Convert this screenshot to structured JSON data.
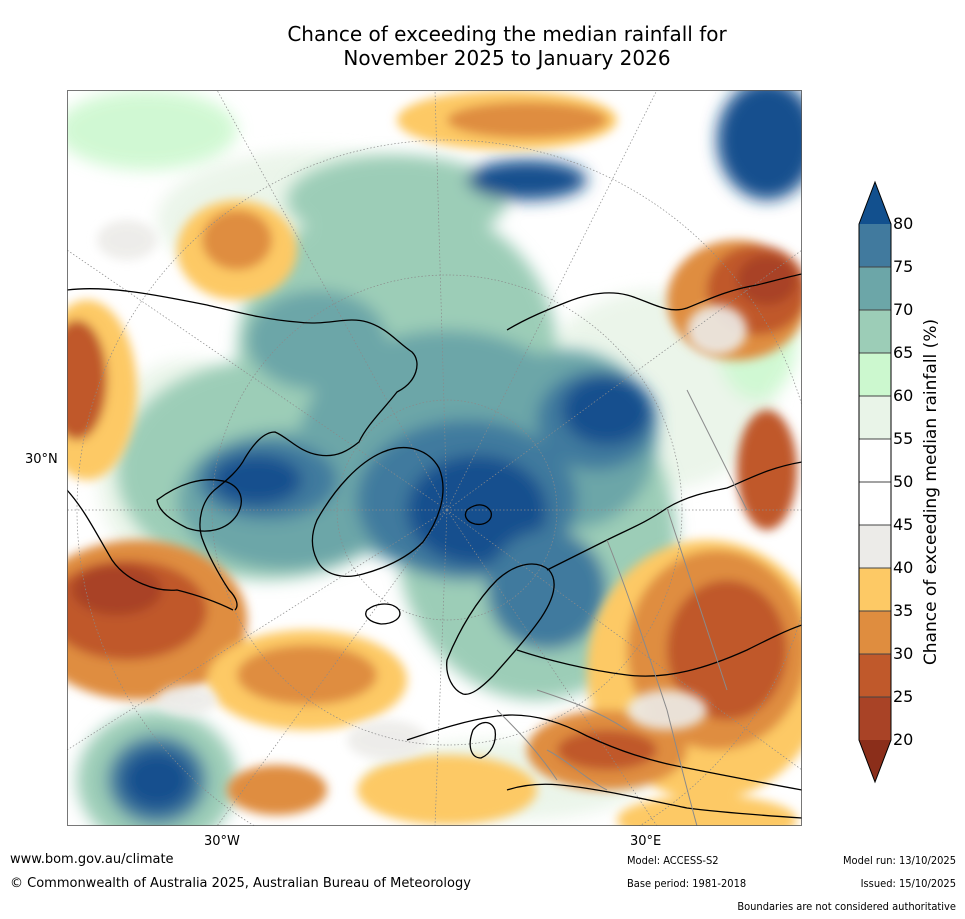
{
  "title": {
    "line1": "Chance of exceeding the median rainfall for",
    "line2": "November 2025 to January 2026"
  },
  "axes": {
    "left_label": "30°N",
    "bottom_labels": [
      "30°W",
      "30°E"
    ]
  },
  "colorbar": {
    "title": "Chance of exceeding median rainfall (%)",
    "ticks": [
      "80",
      "75",
      "70",
      "65",
      "60",
      "55",
      "50",
      "45",
      "40",
      "35",
      "30",
      "25",
      "20"
    ],
    "bins": [
      {
        "range": "80+",
        "color": "#12508e"
      },
      {
        "range": "75-80",
        "color": "#417a9e"
      },
      {
        "range": "70-75",
        "color": "#6ca6a8"
      },
      {
        "range": "65-70",
        "color": "#9ccdb7"
      },
      {
        "range": "60-65",
        "color": "#ccf8cf"
      },
      {
        "range": "55-60",
        "color": "#e9f4e8"
      },
      {
        "range": "50-55",
        "color": "#ffffff"
      },
      {
        "range": "45-50",
        "color": "#ffffff"
      },
      {
        "range": "40-45",
        "color": "#ecebe8"
      },
      {
        "range": "35-40",
        "color": "#fdc965"
      },
      {
        "range": "30-35",
        "color": "#df8d3f"
      },
      {
        "range": "25-30",
        "color": "#c0592b"
      },
      {
        "range": "20-25",
        "color": "#a94326"
      },
      {
        "range": "<20",
        "color": "#8b2e1a"
      }
    ]
  },
  "footer": {
    "website": "www.bom.gov.au/climate",
    "copyright": "© Commonwealth of Australia 2025, Australian Bureau of Meteorology",
    "model": "Model: ACCESS-S2",
    "base_period": "Base period: 1981-2018",
    "model_run": "Model run: 13/10/2025",
    "issued": "Issued: 15/10/2025",
    "disclaimer": "Boundaries are not considered authoritative"
  }
}
